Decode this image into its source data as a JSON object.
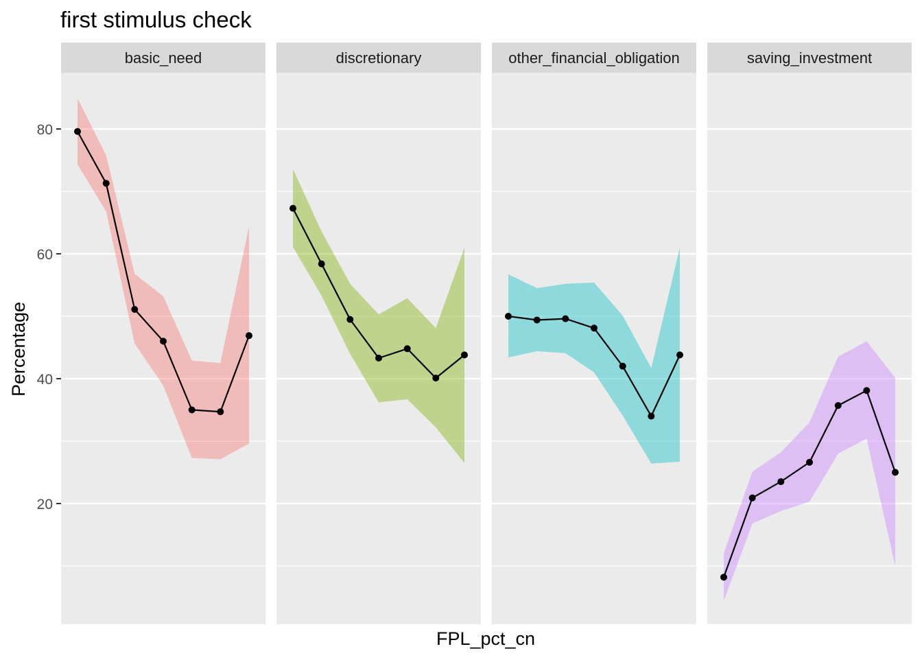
{
  "chart_data": {
    "type": "line",
    "title": "first stimulus check",
    "xlabel": "FPL_pct_cn",
    "ylabel": "Percentage",
    "ylim": [
      0,
      88
    ],
    "y_ticks": [
      20,
      40,
      60,
      80
    ],
    "y_minor_ticks": [
      10,
      30,
      50,
      70
    ],
    "grid": true,
    "x_points_per_panel": 7,
    "panels": [
      {
        "name": "basic_need",
        "fill_color": "#F8766D",
        "values": [
          79.6,
          71.3,
          51.1,
          46.0,
          35.0,
          34.7,
          46.9
        ],
        "upper": [
          84.9,
          75.8,
          56.8,
          53.2,
          42.9,
          42.5,
          64.4
        ],
        "lower": [
          74.3,
          66.8,
          45.6,
          38.9,
          27.3,
          27.1,
          29.6
        ]
      },
      {
        "name": "discretionary",
        "fill_color": "#7CAE00",
        "values": [
          67.3,
          58.4,
          49.5,
          43.3,
          44.8,
          40.1,
          43.8
        ],
        "upper": [
          73.6,
          63.6,
          55.2,
          50.3,
          52.9,
          48.1,
          61.0
        ],
        "lower": [
          61.1,
          53.3,
          44.0,
          36.2,
          36.7,
          32.2,
          26.5
        ]
      },
      {
        "name": "other_financial_obligation",
        "fill_color": "#00BFC4",
        "values": [
          50.0,
          49.4,
          49.6,
          48.1,
          42.0,
          34.0,
          43.8
        ],
        "upper": [
          56.7,
          54.5,
          55.2,
          55.4,
          50.1,
          41.7,
          61.0
        ],
        "lower": [
          43.4,
          44.4,
          44.1,
          41.0,
          34.1,
          26.4,
          26.7
        ]
      },
      {
        "name": "saving_investment",
        "fill_color": "#C77CFF",
        "values": [
          8.2,
          20.9,
          23.5,
          26.6,
          35.7,
          38.1,
          25.0
        ],
        "upper": [
          12.0,
          25.1,
          28.2,
          33.0,
          43.5,
          46.0,
          40.1
        ],
        "lower": [
          4.4,
          16.8,
          18.8,
          20.3,
          28.0,
          30.4,
          10.0
        ]
      }
    ]
  }
}
